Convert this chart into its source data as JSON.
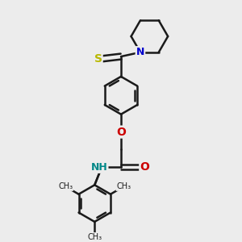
{
  "bg_color": "#ececec",
  "bond_color": "#1a1a1a",
  "bond_width": 1.8,
  "S_color": "#b8b800",
  "N_color": "#0000cc",
  "O_color": "#cc0000",
  "NH_color": "#008888",
  "figsize": [
    3.0,
    3.0
  ],
  "dpi": 100,
  "xlim": [
    0,
    10
  ],
  "ylim": [
    0,
    10
  ]
}
